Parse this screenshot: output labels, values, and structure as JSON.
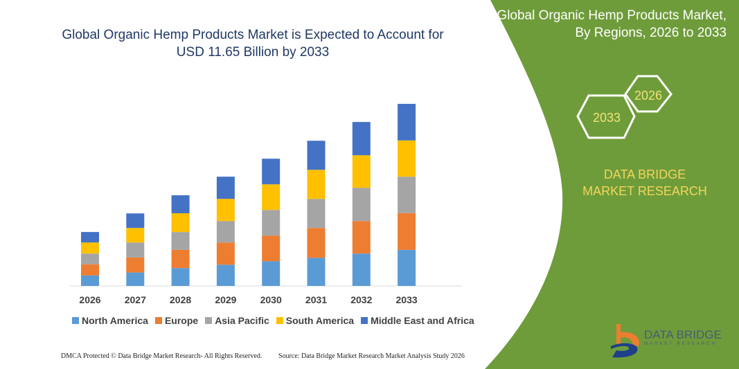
{
  "chart_data": {
    "type": "bar",
    "stacked": true,
    "title": "Global Organic Hemp Products Market is Expected to Account for USD 11.65 Billion by 2033",
    "categories": [
      "2026",
      "2027",
      "2028",
      "2029",
      "2030",
      "2031",
      "2032",
      "2033"
    ],
    "series": [
      {
        "name": "North America",
        "color": "#5b9bd5",
        "values": [
          0.67,
          0.86,
          1.14,
          1.36,
          1.58,
          1.8,
          2.07,
          2.31
        ]
      },
      {
        "name": "Europe",
        "color": "#ed7d31",
        "values": [
          0.71,
          0.96,
          1.17,
          1.42,
          1.64,
          1.91,
          2.08,
          2.35
        ]
      },
      {
        "name": "Asia Pacific",
        "color": "#a5a5a5",
        "values": [
          0.69,
          0.96,
          1.14,
          1.37,
          1.64,
          1.86,
          2.13,
          2.33
        ]
      },
      {
        "name": "South America",
        "color": "#ffc000",
        "values": [
          0.71,
          0.93,
          1.2,
          1.42,
          1.64,
          1.86,
          2.08,
          2.32
        ]
      },
      {
        "name": "Middle East and Africa",
        "color": "#4472c4",
        "values": [
          0.67,
          0.93,
          1.15,
          1.42,
          1.64,
          1.86,
          2.13,
          2.34
        ]
      }
    ],
    "ylim": [
      0,
      11.65
    ],
    "grid": false,
    "legend_position": "bottom",
    "y_axis_shown": false
  },
  "panel": {
    "title": "Global Organic Hemp Products Market, By Regions, 2026 to 2033",
    "hex_start": "2026",
    "hex_end": "2033",
    "brand": "DATA BRIDGE MARKET RESEARCH",
    "color": "#6f9c3a"
  },
  "logo": {
    "name": "DATA BRIDGE",
    "sub": "MARKET RESEARCH"
  },
  "footer": {
    "left": "DMCA Protected © Data Bridge Market Research-  All Rights Reserved.",
    "right": "Source: Data Bridge Market Research  Market Analysis Study 2026"
  }
}
